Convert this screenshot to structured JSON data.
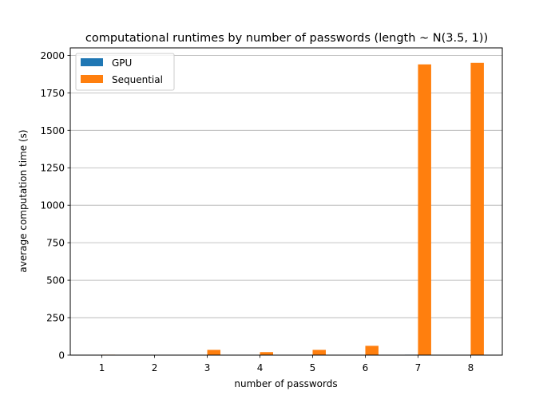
{
  "chart_data": {
    "type": "bar",
    "title": "computational runtimes by number of passwords (length ~ N(3.5, 1))",
    "xlabel": "number of passwords",
    "ylabel": "average computation time (s)",
    "categories": [
      "1",
      "2",
      "3",
      "4",
      "5",
      "6",
      "7",
      "8"
    ],
    "series": [
      {
        "name": "GPU",
        "color": "#1f77b4",
        "values": [
          0.2,
          0.1,
          0.3,
          0.2,
          0.3,
          0.5,
          3.0,
          0.6
        ]
      },
      {
        "name": "Sequential",
        "color": "#ff7f0e",
        "values": [
          3,
          1,
          35,
          20,
          35,
          62,
          1940,
          1950
        ]
      }
    ],
    "ylim": [
      0,
      2050
    ],
    "yticks": [
      0,
      250,
      500,
      750,
      1000,
      1250,
      1500,
      1750,
      2000
    ],
    "grid": "y",
    "legend_position": "top-left"
  }
}
